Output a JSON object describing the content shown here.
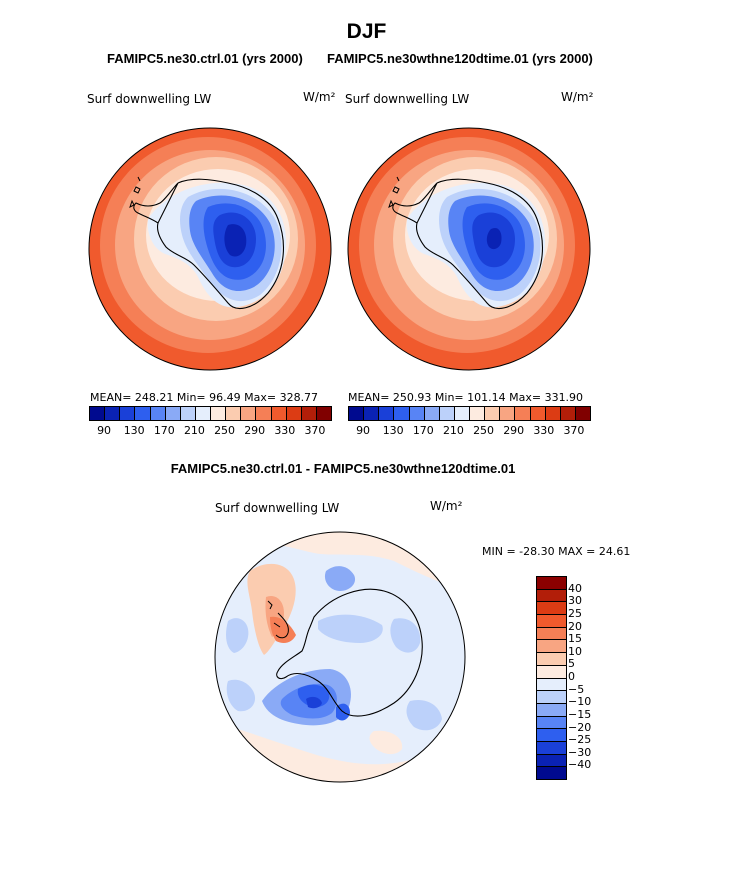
{
  "figure": {
    "season": "DJF",
    "case_left": "FAMIPC5.ne30.ctrl.01 (yrs 2000)",
    "case_right": "FAMIPC5.ne30wthne120dtime.01 (yrs 2000)",
    "variable": "Surf downwelling LW",
    "units": "W/m²",
    "diff_title": "FAMIPC5.ne30.ctrl.01 - FAMIPC5.ne30wthne120dtime.01"
  },
  "panels": [
    {
      "stats": "MEAN= 248.21   Min=  96.49   Max= 328.77"
    },
    {
      "stats": "MEAN= 250.93   Min= 101.14   Max= 331.90"
    }
  ],
  "diff_panel": {
    "minmax": "MIN = -28.30 MAX =  24.61"
  },
  "colorbar_main": {
    "tick_labels": [
      "90",
      "130",
      "170",
      "210",
      "250",
      "290",
      "330",
      "370"
    ],
    "colors": [
      "#000a8f",
      "#0a22b4",
      "#1a40d8",
      "#2e5fef",
      "#5884f5",
      "#8aaaf6",
      "#bcd1fa",
      "#e5eefc",
      "#fdebe0",
      "#fbccb0",
      "#f8a582",
      "#f57f56",
      "#f05a2d",
      "#dc3c14",
      "#b21e09",
      "#800000"
    ]
  },
  "colorbar_diff": {
    "tick_labels": [
      "40",
      "30",
      "25",
      "20",
      "15",
      "10",
      "5",
      "0",
      "−5",
      "−10",
      "−15",
      "−20",
      "−25",
      "−30",
      "−40"
    ],
    "colors": [
      "#8b0000",
      "#b21e09",
      "#dc3c14",
      "#f05a2d",
      "#f57f56",
      "#f8a582",
      "#fbccb0",
      "#fdebe0",
      "#e5eefc",
      "#bcd1fa",
      "#8aaaf6",
      "#5884f5",
      "#2e5fef",
      "#1a40d8",
      "#0a22b4",
      "#000a8f"
    ]
  }
}
